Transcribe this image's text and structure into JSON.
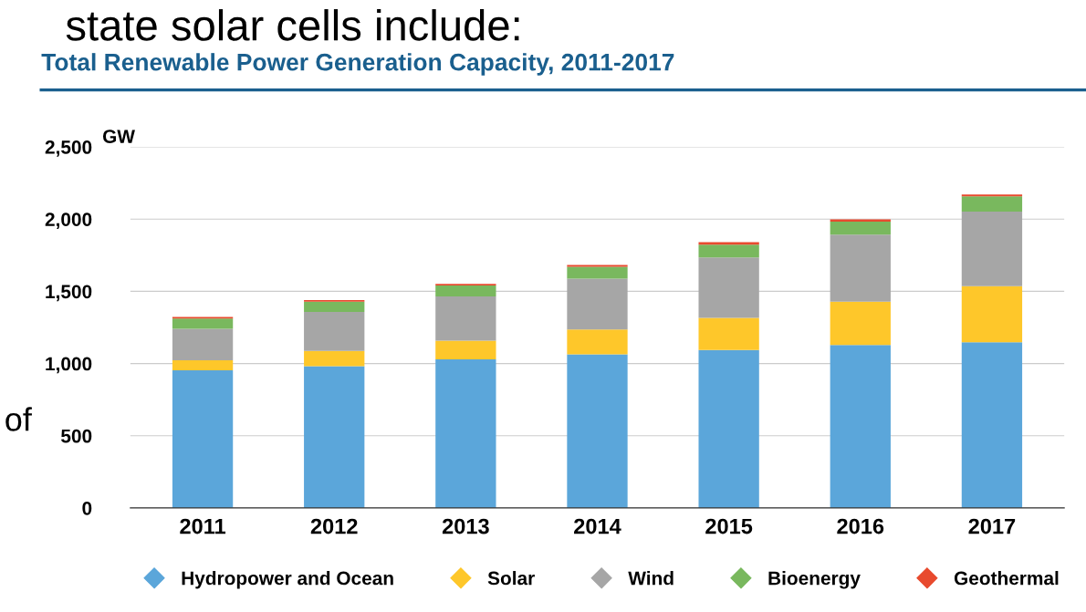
{
  "chart_data": {
    "type": "bar",
    "stacked": true,
    "title": "Total Renewable Power Generation Capacity, 2011-2017",
    "ylabel": "GW",
    "annotations": [
      "state solar cells include:",
      "of"
    ],
    "categories": [
      "2011",
      "2012",
      "2013",
      "2014",
      "2015",
      "2016",
      "2017"
    ],
    "series": [
      {
        "name": "Hydropower and Ocean",
        "color": "#5ba6da",
        "values": [
          953,
          982,
          1029,
          1064,
          1094,
          1129,
          1147
        ]
      },
      {
        "name": "Solar",
        "color": "#fec72a",
        "values": [
          70,
          106,
          129,
          171,
          223,
          300,
          388
        ]
      },
      {
        "name": "Wind",
        "color": "#a6a6a6",
        "values": [
          218,
          270,
          306,
          353,
          418,
          464,
          517
        ]
      },
      {
        "name": "Bioenergy",
        "color": "#79b85e",
        "values": [
          70,
          71,
          77,
          82,
          88,
          89,
          106
        ]
      },
      {
        "name": "Geothermal",
        "color": "#e84a2e",
        "values": [
          12,
          11,
          11,
          12,
          17,
          17,
          12
        ]
      }
    ],
    "ylim": [
      0,
      2500
    ],
    "yticks": [
      0,
      500,
      {
        "value": 1000,
        "label": "1,000"
      },
      {
        "value": 1500,
        "label": "1,500"
      },
      {
        "value": 2000,
        "label": "2,000"
      },
      {
        "value": 2500,
        "label": "2,500"
      }
    ],
    "grid": "y",
    "legend": "bottom",
    "marker": "diamond"
  }
}
